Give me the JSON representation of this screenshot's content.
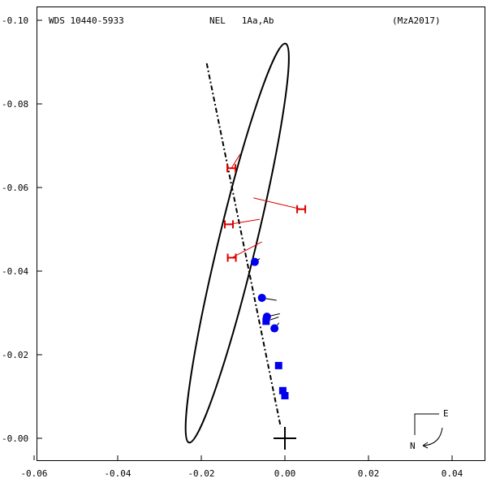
{
  "header": {
    "wds": "WDS 10440-5933",
    "pair": "NEL   1Aa,Ab",
    "reference": "(MzA2017)"
  },
  "compass": {
    "east": "E",
    "north": "N"
  },
  "chart_data": {
    "type": "scatter",
    "title": "",
    "xlabel": "",
    "ylabel": "",
    "xlim": [
      -0.06,
      0.04
    ],
    "ylim": [
      0.0,
      0.1
    ],
    "x_ticks": [
      "-0.06",
      "-0.04",
      "-0.02",
      "0.00",
      "0.02",
      "0.04"
    ],
    "x_tick_values": [
      -0.06,
      -0.04,
      -0.02,
      0.0,
      0.02,
      0.04
    ],
    "y_ticks": [
      "-0.00",
      "-0.02",
      "-0.04",
      "-0.06",
      "-0.08",
      "-0.10"
    ],
    "y_tick_values": [
      0.0,
      0.02,
      0.04,
      0.06,
      0.08,
      0.1
    ],
    "orbit": {
      "center": [
        -0.0114,
        0.0467
      ],
      "semi_major": 0.0491,
      "semi_minor": 0.0045,
      "angle_deg": 103.6,
      "color": "#000000"
    },
    "line_of_nodes": {
      "from": [
        -0.0187,
        0.0897
      ],
      "to": [
        -0.001,
        0.0027
      ]
    },
    "primary": [
      0.0,
      0.0
    ],
    "series": [
      {
        "marker": "H",
        "color": "#dd0000",
        "points": [
          {
            "obs": [
              -0.0128,
              0.0646
            ],
            "calc": [
              -0.0107,
              0.068
            ]
          },
          {
            "obs": [
              0.0039,
              0.0548
            ],
            "calc": [
              -0.0075,
              0.0575
            ]
          },
          {
            "obs": [
              -0.0134,
              0.0512
            ],
            "calc": [
              -0.006,
              0.0524
            ]
          },
          {
            "obs": [
              -0.0127,
              0.0432
            ],
            "calc": [
              -0.0055,
              0.047
            ]
          }
        ]
      },
      {
        "marker": "circle",
        "color": "#0000ee",
        "points": [
          {
            "obs": [
              -0.0072,
              0.0422
            ],
            "calc": [
              -0.006,
              0.043
            ]
          },
          {
            "obs": [
              -0.0055,
              0.0336
            ],
            "calc": [
              -0.002,
              0.033
            ]
          },
          {
            "obs": [
              -0.0043,
              0.0291
            ],
            "calc": [
              -0.0012,
              0.0298
            ]
          },
          {
            "obs": [
              -0.0025,
              0.0263
            ],
            "calc": [
              -0.0014,
              0.0276
            ]
          }
        ]
      },
      {
        "marker": "square",
        "color": "#0000ee",
        "points": [
          {
            "obs": [
              -0.0045,
              0.028
            ],
            "calc": [
              -0.0015,
              0.029
            ]
          },
          {
            "obs": [
              -0.0015,
              0.0174
            ],
            "calc": [
              -0.0007,
              0.0174
            ]
          },
          {
            "obs": [
              -0.0005,
              0.0114
            ],
            "calc": [
              -0.0003,
              0.0116
            ]
          },
          {
            "obs": [
              0.0,
              0.0102
            ],
            "calc": [
              0.0002,
              0.0104
            ]
          }
        ]
      }
    ]
  }
}
